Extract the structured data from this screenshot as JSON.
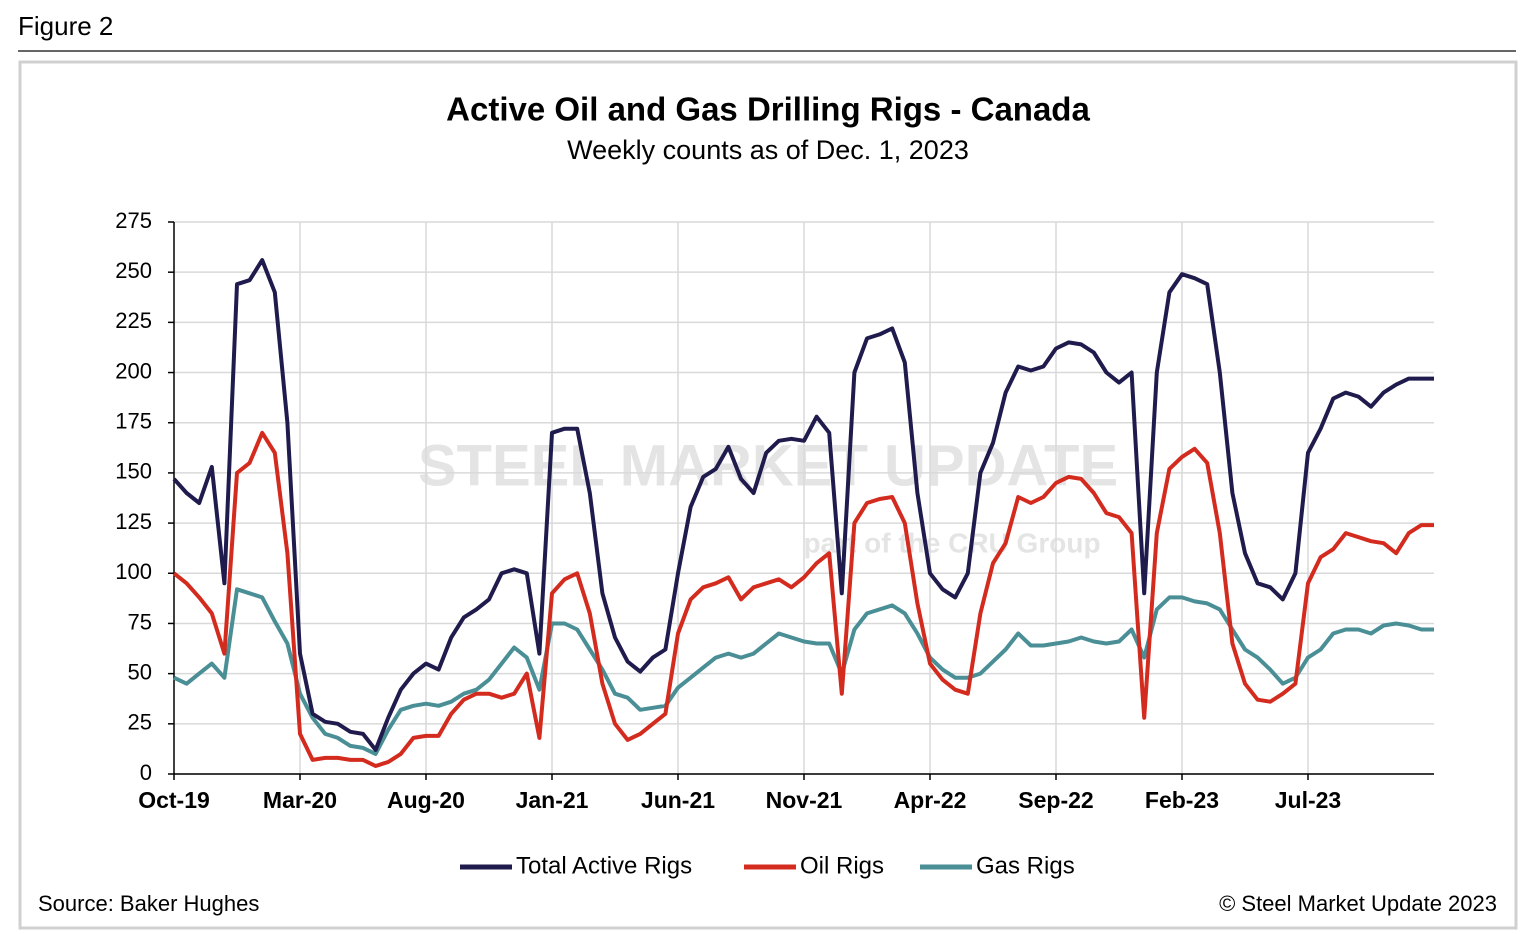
{
  "figure_label": "Figure 2",
  "chart_data": {
    "type": "line",
    "title": "Active Oil and Gas Drilling Rigs - Canada",
    "subtitle": "Weekly counts as of Dec. 1, 2023",
    "source": "Source: Baker Hughes",
    "copyright": "© Steel Market Update 2023",
    "watermark": [
      "STEEL MARKET UPDATE",
      "part of the CRU Group"
    ],
    "categories": [
      "Oct-19",
      null,
      null,
      null,
      null,
      null,
      null,
      null,
      null,
      null,
      "Mar-20",
      null,
      null,
      null,
      null,
      null,
      null,
      null,
      null,
      null,
      "Aug-20",
      null,
      null,
      null,
      null,
      null,
      null,
      null,
      null,
      null,
      "Jan-21",
      null,
      null,
      null,
      null,
      null,
      null,
      null,
      null,
      null,
      "Jun-21",
      null,
      null,
      null,
      null,
      null,
      null,
      null,
      null,
      null,
      "Nov-21",
      null,
      null,
      null,
      null,
      null,
      null,
      null,
      null,
      null,
      "Apr-22",
      null,
      null,
      null,
      null,
      null,
      null,
      null,
      null,
      null,
      "Sep-22",
      null,
      null,
      null,
      null,
      null,
      null,
      null,
      null,
      null,
      "Feb-23",
      null,
      null,
      null,
      null,
      null,
      null,
      null,
      null,
      null,
      "Jul-23",
      null,
      null,
      null,
      null,
      null,
      null,
      null,
      null,
      null,
      null
    ],
    "series": [
      {
        "name": "Total Active Rigs",
        "color": "#1f1b4d",
        "values": [
          147,
          140,
          135,
          153,
          95,
          244,
          246,
          256,
          240,
          175,
          60,
          30,
          26,
          25,
          21,
          20,
          12,
          28,
          42,
          50,
          55,
          52,
          68,
          78,
          82,
          87,
          100,
          102,
          100,
          60,
          170,
          172,
          172,
          140,
          90,
          68,
          56,
          51,
          58,
          62,
          100,
          133,
          148,
          152,
          163,
          147,
          140,
          160,
          166,
          167,
          166,
          178,
          170,
          90,
          200,
          217,
          219,
          222,
          205,
          140,
          100,
          92,
          88,
          100,
          150,
          165,
          190,
          203,
          201,
          203,
          212,
          215,
          214,
          210,
          200,
          195,
          200,
          90,
          200,
          240,
          249,
          247,
          244,
          200,
          140,
          110,
          95,
          93,
          87,
          100,
          160,
          172,
          187,
          190,
          188,
          183,
          190,
          194,
          197,
          197,
          197
        ]
      },
      {
        "name": "Oil Rigs",
        "color": "#d42b1f",
        "values": [
          100,
          95,
          88,
          80,
          60,
          150,
          155,
          170,
          160,
          110,
          20,
          7,
          8,
          8,
          7,
          7,
          4,
          6,
          10,
          18,
          19,
          19,
          30,
          37,
          40,
          40,
          38,
          40,
          50,
          18,
          90,
          97,
          100,
          80,
          45,
          25,
          17,
          20,
          25,
          30,
          70,
          87,
          93,
          95,
          98,
          87,
          93,
          95,
          97,
          93,
          98,
          105,
          110,
          40,
          125,
          135,
          137,
          138,
          125,
          85,
          55,
          47,
          42,
          40,
          80,
          105,
          115,
          138,
          135,
          138,
          145,
          148,
          147,
          140,
          130,
          128,
          120,
          28,
          120,
          152,
          158,
          162,
          155,
          120,
          65,
          45,
          37,
          36,
          40,
          45,
          95,
          108,
          112,
          120,
          118,
          116,
          115,
          110,
          120,
          124,
          124
        ]
      },
      {
        "name": "Gas Rigs",
        "color": "#4a8e96",
        "values": [
          48,
          45,
          50,
          55,
          48,
          92,
          90,
          88,
          76,
          65,
          40,
          28,
          20,
          18,
          14,
          13,
          10,
          22,
          32,
          34,
          35,
          34,
          36,
          40,
          42,
          47,
          55,
          63,
          58,
          42,
          75,
          75,
          72,
          62,
          52,
          40,
          38,
          32,
          33,
          34,
          43,
          48,
          53,
          58,
          60,
          58,
          60,
          65,
          70,
          68,
          66,
          65,
          65,
          50,
          72,
          80,
          82,
          84,
          80,
          70,
          58,
          52,
          48,
          48,
          50,
          56,
          62,
          70,
          64,
          64,
          65,
          66,
          68,
          66,
          65,
          66,
          72,
          58,
          82,
          88,
          88,
          86,
          85,
          82,
          72,
          62,
          58,
          52,
          45,
          48,
          58,
          62,
          70,
          72,
          72,
          70,
          74,
          75,
          74,
          72,
          72
        ]
      }
    ],
    "ylim": [
      0,
      275
    ],
    "yticks": [
      0,
      25,
      50,
      75,
      100,
      125,
      150,
      175,
      200,
      225,
      250,
      275
    ],
    "grid": true,
    "legend": "bottom"
  }
}
